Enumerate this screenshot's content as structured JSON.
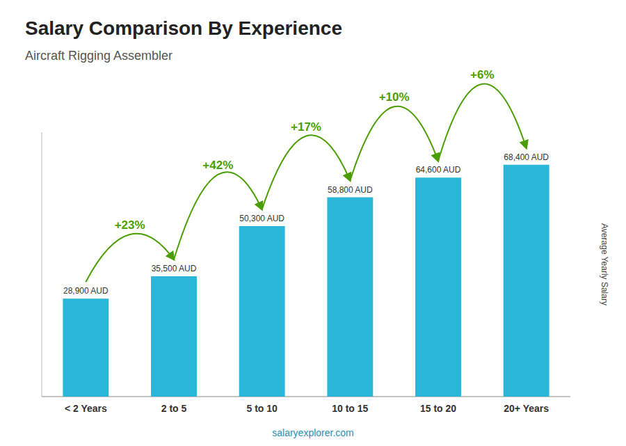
{
  "chart_data": {
    "type": "bar",
    "title": "Salary Comparison By Experience",
    "subtitle": "Aircraft Rigging Assembler",
    "categories": [
      "< 2 Years",
      "2 to 5",
      "5 to 10",
      "10 to 15",
      "15 to 20",
      "20+ Years"
    ],
    "values": [
      28900,
      35500,
      50300,
      58800,
      64600,
      68400
    ],
    "value_labels": [
      "28,900 AUD",
      "35,500 AUD",
      "50,300 AUD",
      "58,800 AUD",
      "64,600 AUD",
      "68,400 AUD"
    ],
    "data_labels": true,
    "annotations": [
      "+23%",
      "+42%",
      "+17%",
      "+10%",
      "+6%"
    ],
    "color": "#29b6d8",
    "ylabel": "Average Yearly Salary",
    "footer": "salaryexplorer.com",
    "ylim": [
      0,
      78000
    ],
    "tick_labels": "x",
    "grid": false
  }
}
